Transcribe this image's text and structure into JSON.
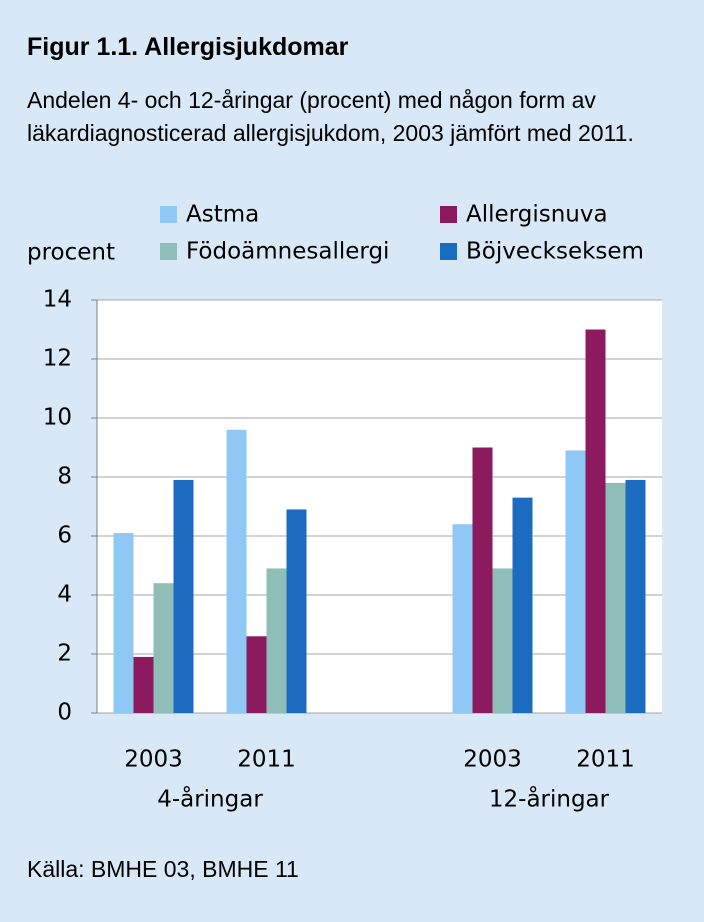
{
  "chart_data": {
    "type": "bar",
    "title": "Figur 1.1. Allergisjukdomar",
    "subtitle": "Andelen 4- och 12-åringar (procent) med någon form av läkardiagnosticerad allergisjukdom, 2003 jämfört med 2011.",
    "y_label": "procent",
    "categories": [
      "2003",
      "2011",
      null,
      "2003",
      "2011"
    ],
    "groups": [
      "4-åringar",
      "12-åringar"
    ],
    "series": [
      {
        "name": "Astma",
        "color": "#8fc8f4",
        "values": [
          6.1,
          9.6,
          null,
          6.4,
          8.9
        ]
      },
      {
        "name": "Allergisnuva",
        "color": "#8b1a5e",
        "values": [
          1.9,
          2.6,
          null,
          9.0,
          13.0
        ]
      },
      {
        "name": "Födoämnesallergi",
        "color": "#8fbdb8",
        "values": [
          4.4,
          4.9,
          null,
          4.9,
          7.8
        ]
      },
      {
        "name": "Böjveckseksem",
        "color": "#1b6cc0",
        "values": [
          7.9,
          6.9,
          null,
          7.3,
          7.9
        ]
      }
    ],
    "ylim": [
      0,
      14
    ],
    "yticks": [
      0,
      2,
      4,
      6,
      8,
      10,
      12,
      14
    ],
    "grid": true,
    "source": "Källa: BMHE 03, BMHE 11"
  }
}
